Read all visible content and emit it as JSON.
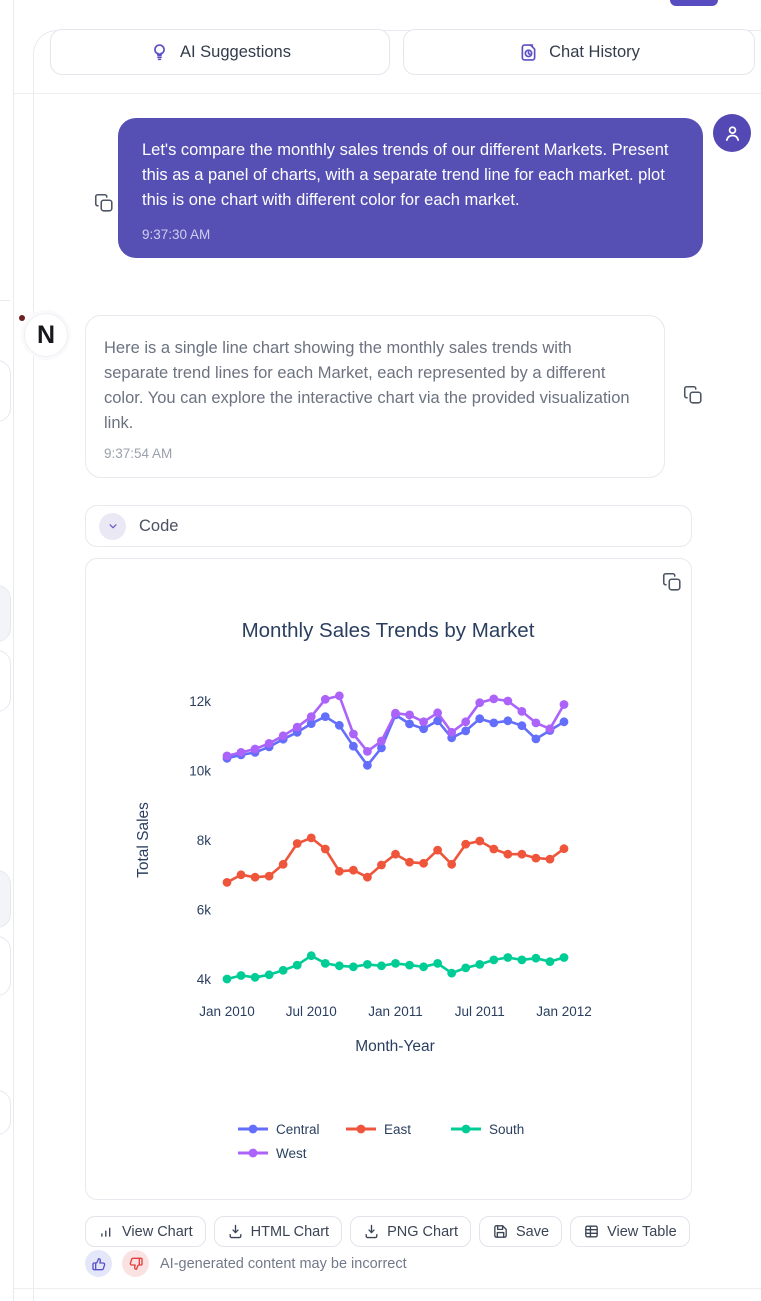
{
  "header": {
    "ai_suggestions_label": "AI Suggestions",
    "chat_history_label": "Chat History"
  },
  "user_message": {
    "text": "Let's compare the monthly sales trends of our different Markets. Present this as a panel of charts, with a separate trend line for each market. plot this is one chart with different color for each market.",
    "timestamp": "9:37:30 AM"
  },
  "assistant_message": {
    "avatar_letter": "N",
    "text": "Here is a single line chart showing the monthly sales trends with separate trend lines for each Market, each represented by a different color. You can explore the interactive chart via the provided visualization link.",
    "timestamp": "9:37:54 AM"
  },
  "code_section": {
    "label": "Code"
  },
  "chart_actions": {
    "view_chart": "View Chart",
    "html_chart": "HTML Chart",
    "png_chart": "PNG Chart",
    "save": "Save",
    "view_table": "View Table"
  },
  "feedback": {
    "disclaimer": "AI-generated content may be incorrect"
  },
  "colors": {
    "user_bubble": "#5650b4",
    "accent_purple": "#5b4fc4",
    "central": "#636EFA",
    "east": "#EF553B",
    "south": "#00CC96",
    "west": "#AB63FA",
    "chart_text": "#2a3f5f"
  },
  "chart_data": {
    "type": "line",
    "title": "Monthly Sales Trends by Market",
    "xlabel": "Month-Year",
    "ylabel": "Total Sales",
    "grid": false,
    "legend_position": "bottom",
    "x": [
      "Jan 2010",
      "Feb 2010",
      "Mar 2010",
      "Apr 2010",
      "May 2010",
      "Jun 2010",
      "Jul 2010",
      "Aug 2010",
      "Sep 2010",
      "Oct 2010",
      "Nov 2010",
      "Dec 2010",
      "Jan 2011",
      "Feb 2011",
      "Mar 2011",
      "Apr 2011",
      "May 2011",
      "Jun 2011",
      "Jul 2011",
      "Aug 2011",
      "Sep 2011",
      "Oct 2011",
      "Nov 2011",
      "Dec 2011",
      "Jan 2012"
    ],
    "x_tick_labels": [
      "Jan 2010",
      "Jul 2010",
      "Jan 2011",
      "Jul 2011",
      "Jan 2012"
    ],
    "y_tick_values": [
      4000,
      6000,
      8000,
      10000,
      12000
    ],
    "y_tick_labels": [
      "4k",
      "6k",
      "8k",
      "10k",
      "12k"
    ],
    "ylim": [
      3500,
      12500
    ],
    "series": [
      {
        "name": "Central",
        "color": "#636EFA",
        "values": [
          10350,
          10450,
          10520,
          10680,
          10900,
          11100,
          11350,
          11550,
          11300,
          10700,
          10150,
          10650,
          11600,
          11340,
          11200,
          11430,
          10940,
          11140,
          11490,
          11370,
          11430,
          11290,
          10910,
          11150,
          11400
        ]
      },
      {
        "name": "East",
        "color": "#EF553B",
        "values": [
          6780,
          7000,
          6930,
          6960,
          7300,
          7900,
          8060,
          7740,
          7100,
          7130,
          6930,
          7280,
          7590,
          7360,
          7330,
          7710,
          7300,
          7880,
          7970,
          7740,
          7590,
          7590,
          7480,
          7450,
          7750
        ]
      },
      {
        "name": "South",
        "color": "#00CC96",
        "values": [
          4000,
          4100,
          4050,
          4120,
          4250,
          4400,
          4670,
          4450,
          4380,
          4350,
          4420,
          4380,
          4450,
          4400,
          4350,
          4450,
          4170,
          4320,
          4420,
          4550,
          4620,
          4550,
          4600,
          4500,
          4620
        ]
      },
      {
        "name": "West",
        "color": "#AB63FA",
        "values": [
          10420,
          10520,
          10620,
          10780,
          11000,
          11250,
          11550,
          12050,
          12150,
          11050,
          10550,
          10850,
          11650,
          11600,
          11400,
          11660,
          11100,
          11400,
          11950,
          12060,
          12000,
          11700,
          11370,
          11200,
          11900
        ]
      }
    ]
  }
}
